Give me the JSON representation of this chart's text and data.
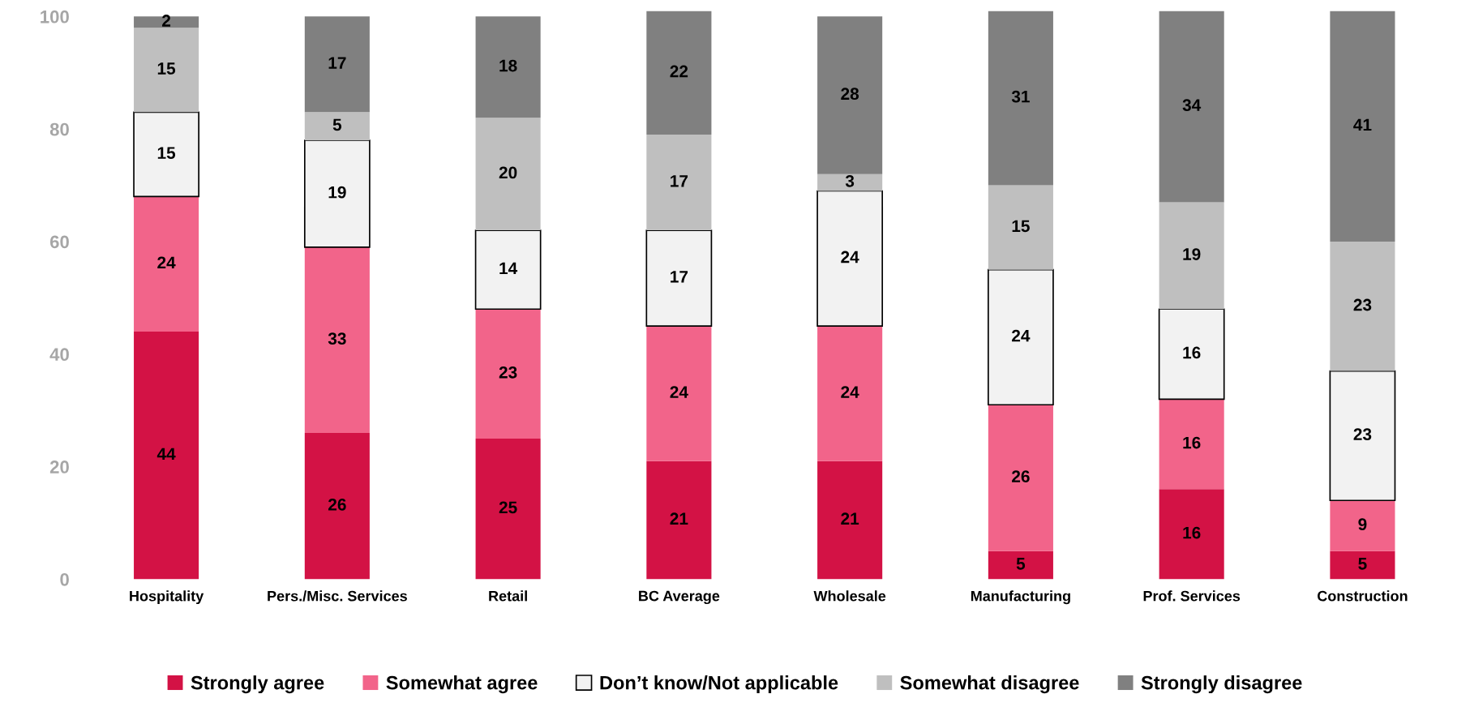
{
  "chart_data": {
    "type": "bar",
    "stacked": true,
    "data_labels": true,
    "legend": "bottom",
    "grid": false,
    "categories": [
      "Hospitality",
      "Pers./Misc. Services",
      "Retail",
      "BC Average",
      "Wholesale",
      "Manufacturing",
      "Prof. Services",
      "Construction"
    ],
    "ylim": [
      0,
      101
    ],
    "yticks": [
      0,
      20,
      40,
      60,
      80,
      100
    ],
    "series": [
      {
        "name": "Strongly agree",
        "color": "#d31245",
        "values": [
          44,
          26,
          25,
          21,
          21,
          5,
          16,
          5
        ]
      },
      {
        "name": "Somewhat agree",
        "color": "#f2648a",
        "values": [
          24,
          33,
          23,
          24,
          24,
          26,
          16,
          9
        ]
      },
      {
        "name": "Don’t know/Not applicable",
        "color": "#f2f2f2",
        "values": [
          15,
          19,
          14,
          17,
          24,
          24,
          16,
          23
        ]
      },
      {
        "name": "Somewhat disagree",
        "color": "#bfbfbf",
        "values": [
          15,
          5,
          20,
          17,
          3,
          15,
          19,
          23
        ]
      },
      {
        "name": "Strongly disagree",
        "color": "#808080",
        "values": [
          2,
          17,
          18,
          22,
          28,
          31,
          34,
          41
        ]
      }
    ]
  }
}
